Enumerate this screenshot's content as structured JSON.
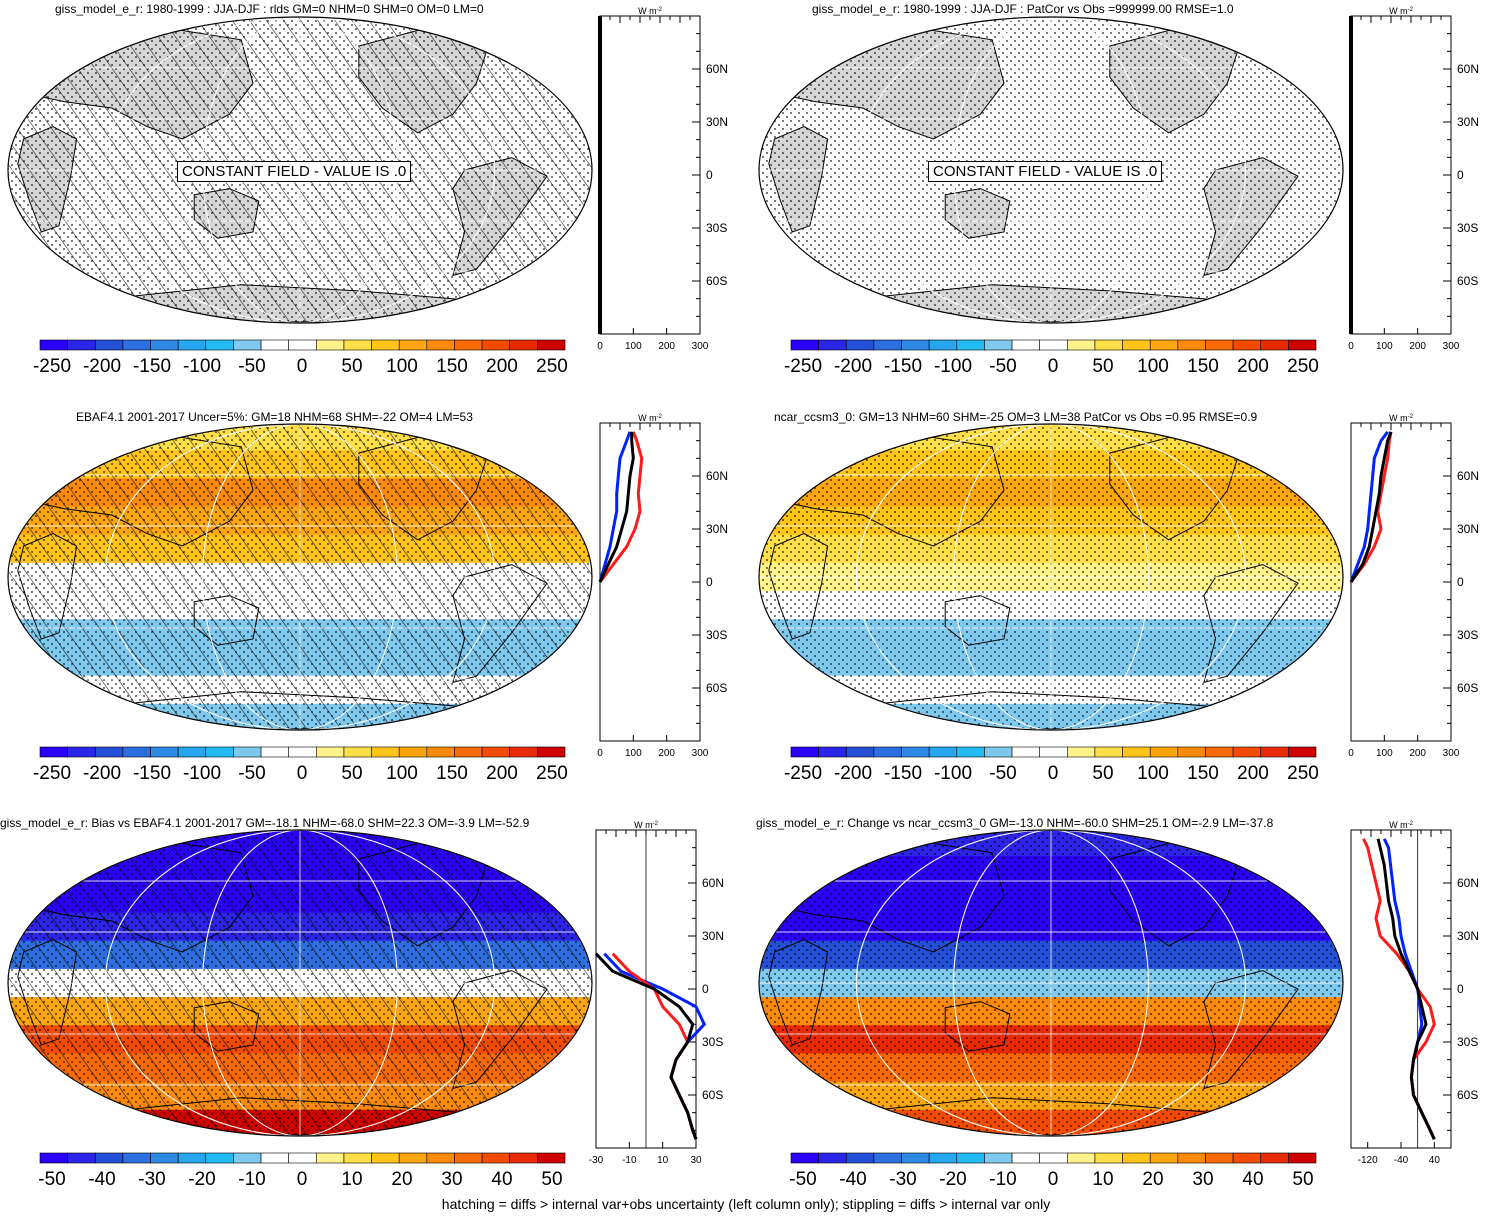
{
  "footer": "hatching = diffs > internal var+obs uncertainty (left column only); stippling = diffs > internal var only",
  "profile_unit": "W m",
  "profile_unit_exp": "-2",
  "lat_ticks": [
    "60N",
    "30N",
    "0",
    "30S",
    "60S"
  ],
  "constant_field_label": "CONSTANT FIELD - VALUE IS .0",
  "colors": {
    "land": "#d6d6d6",
    "scale_abs": [
      "#2b00ff",
      "#2c24e8",
      "#2450d8",
      "#2d6fe0",
      "#2f8ae6",
      "#25a6ee",
      "#22bcf2",
      "#7fc8ee",
      "#ffffff",
      "#ffffff",
      "#fff28a",
      "#ffdf47",
      "#ffc41a",
      "#fca60f",
      "#fb8a0a",
      "#f96a05",
      "#f34b02",
      "#e82a02",
      "#cf0000"
    ],
    "profile_black": "#000000",
    "profile_red": "#ff1a1a",
    "profile_blue": "#0022ff"
  },
  "chart_data": [
    {
      "type": "heatmap",
      "title": "giss_model_e_r: 1980-1999 : JJA-DJF : rlds GM=0 NHM=0 SHM=0 OM=0 LM=0",
      "annotation": "CONSTANT FIELD - VALUE IS .0",
      "colorbar_ticks": [
        "-250",
        "-200",
        "-150",
        "-100",
        "-50",
        "0",
        "50",
        "100",
        "150",
        "200",
        "250"
      ],
      "colorbar_range": [
        -250,
        250
      ],
      "profile_xticks": [
        "0",
        "100",
        "200",
        "300"
      ],
      "profile_xlim": [
        0,
        300
      ],
      "profile": {
        "lat": [
          -90,
          90
        ],
        "black": [
          0,
          0
        ]
      },
      "hatched": true,
      "field": "constant"
    },
    {
      "type": "heatmap",
      "title": "giss_model_e_r: 1980-1999 : JJA-DJF : PatCor vs Obs =999999.00 RMSE=1.0",
      "annotation": "CONSTANT FIELD - VALUE IS .0",
      "colorbar_ticks": [
        "-250",
        "-200",
        "-150",
        "-100",
        "-50",
        "0",
        "50",
        "100",
        "150",
        "200",
        "250"
      ],
      "colorbar_range": [
        -250,
        250
      ],
      "profile_xticks": [
        "0",
        "100",
        "200",
        "300"
      ],
      "profile_xlim": [
        0,
        300
      ],
      "profile": {
        "lat": [
          -90,
          90
        ],
        "black": [
          0,
          0
        ]
      },
      "hatched": false,
      "field": "constant"
    },
    {
      "type": "heatmap",
      "title": "EBAF4.1 2001-2017 Uncer=5%: GM=18 NHM=68 SHM=-22 OM=4 LM=53",
      "colorbar_ticks": [
        "-250",
        "-200",
        "-150",
        "-100",
        "-50",
        "0",
        "50",
        "100",
        "150",
        "200",
        "250"
      ],
      "colorbar_range": [
        -250,
        250
      ],
      "profile_xticks": [
        "0",
        "100",
        "200",
        "300"
      ],
      "profile_xlim": [
        0,
        300
      ],
      "profile": {
        "lat": [
          0,
          10,
          20,
          30,
          40,
          50,
          60,
          70,
          80,
          85
        ],
        "black": [
          0,
          25,
          50,
          65,
          80,
          85,
          90,
          100,
          95,
          95
        ],
        "red": [
          0,
          40,
          80,
          105,
          120,
          115,
          120,
          125,
          110,
          100
        ],
        "blue": [
          0,
          15,
          30,
          40,
          50,
          50,
          55,
          60,
          80,
          90
        ]
      },
      "hatched": true,
      "field": "ebaf"
    },
    {
      "type": "heatmap",
      "title": "ncar_ccsm3_0: GM=13 NHM=60 SHM=-25 OM=3 LM=38 PatCor vs Obs =0.95 RMSE=0.9",
      "colorbar_ticks": [
        "-250",
        "-200",
        "-150",
        "-100",
        "-50",
        "0",
        "50",
        "100",
        "150",
        "200",
        "250"
      ],
      "colorbar_range": [
        -250,
        250
      ],
      "profile_xticks": [
        "0",
        "100",
        "200",
        "300"
      ],
      "profile_xlim": [
        0,
        300
      ],
      "profile": {
        "lat": [
          0,
          10,
          20,
          30,
          40,
          50,
          60,
          70,
          80,
          85
        ],
        "black": [
          0,
          35,
          55,
          65,
          75,
          85,
          90,
          100,
          110,
          120
        ],
        "red": [
          0,
          40,
          70,
          90,
          80,
          90,
          100,
          110,
          115,
          120
        ],
        "blue": [
          0,
          20,
          40,
          50,
          55,
          60,
          65,
          70,
          90,
          110
        ]
      },
      "hatched": false,
      "field": "ncar"
    },
    {
      "type": "heatmap",
      "title": "giss_model_e_r: Bias vs EBAF4.1 2001-2017 GM=-18.1 NHM=-68.0 SHM=22.3 OM=-3.9 LM=-52.9",
      "colorbar_ticks": [
        "-50",
        "-40",
        "-30",
        "-20",
        "-10",
        "0",
        "10",
        "20",
        "30",
        "40",
        "50"
      ],
      "colorbar_range": [
        -50,
        50
      ],
      "profile_xticks": [
        "-30",
        "-10",
        "10",
        "30"
      ],
      "profile_xlim": [
        -30,
        30
      ],
      "profile": {
        "lat": [
          -85,
          -80,
          -70,
          -60,
          -50,
          -40,
          -30,
          -20,
          -10,
          0,
          10,
          20
        ],
        "black": [
          30,
          28,
          25,
          20,
          15,
          18,
          25,
          28,
          20,
          5,
          -20,
          -30
        ],
        "red": [
          30,
          28,
          25,
          20,
          15,
          18,
          25,
          20,
          10,
          5,
          -10,
          -20
        ],
        "blue": [
          30,
          28,
          25,
          20,
          15,
          18,
          25,
          35,
          30,
          10,
          -15,
          -25
        ]
      },
      "hatched": true,
      "field": "bias"
    },
    {
      "type": "heatmap",
      "title": "giss_model_e_r: Change vs ncar_ccsm3_0 GM=-13.0 NHM=-60.0 SHM=25.1 OM=-2.9 LM=-37.8",
      "colorbar_ticks": [
        "-50",
        "-40",
        "-30",
        "-20",
        "-10",
        "0",
        "10",
        "20",
        "30",
        "40",
        "50"
      ],
      "colorbar_range": [
        -50,
        50
      ],
      "profile_xticks": [
        "-120",
        "-40",
        "40"
      ],
      "profile_xlim": [
        -160,
        80
      ],
      "profile": {
        "lat": [
          -85,
          -80,
          -70,
          -60,
          -50,
          -40,
          -30,
          -20,
          -10,
          0,
          10,
          20,
          30,
          40,
          50,
          60,
          70,
          80,
          85
        ],
        "black": [
          40,
          30,
          10,
          -10,
          -15,
          -10,
          0,
          20,
          10,
          0,
          -20,
          -40,
          -55,
          -60,
          -70,
          -75,
          -80,
          -90,
          -95
        ],
        "red": [
          40,
          30,
          10,
          -10,
          -15,
          -10,
          20,
          40,
          30,
          0,
          -20,
          -50,
          -90,
          -100,
          -90,
          -100,
          -110,
          -120,
          -130
        ],
        "blue": [
          40,
          30,
          10,
          -10,
          -15,
          -10,
          0,
          10,
          5,
          0,
          -15,
          -30,
          -40,
          -45,
          -55,
          -60,
          -65,
          -70,
          -80
        ]
      },
      "hatched": false,
      "field": "change"
    }
  ]
}
